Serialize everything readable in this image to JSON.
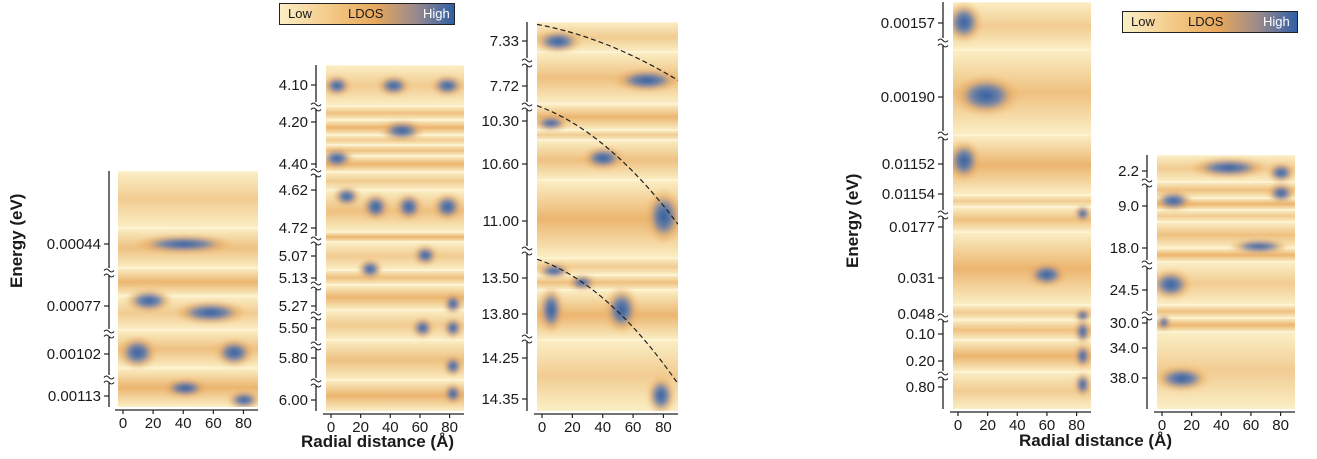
{
  "colors": {
    "low": "#fbefc6",
    "mid": "#e8a85c",
    "high": "#2b5aa3"
  },
  "legend": {
    "low": "Low",
    "mid": "LDOS",
    "high": "High"
  },
  "labels": {
    "energy": "Energy (eV)",
    "radial": "Radial distance (Å)"
  },
  "chart_data": [
    {
      "type": "heatmap",
      "name_hint": "panel-a",
      "ylabel": "Energy (eV)",
      "x_ticks": [
        "0",
        "20",
        "40",
        "60",
        "80"
      ],
      "xlim": [
        0,
        85
      ],
      "y_ticks": [
        "0.00044",
        "0.00077",
        "0.00102",
        "0.00113"
      ],
      "hotspots": [
        {
          "energy": "0.00044",
          "r": [
            15,
            55
          ]
        },
        {
          "energy": "0.00077",
          "r": [
            10,
            60
          ]
        },
        {
          "energy": "0.00102",
          "r": [
            5,
            70
          ]
        },
        {
          "energy": "0.00113",
          "r": [
            40,
            80
          ]
        }
      ]
    },
    {
      "type": "heatmap",
      "name_hint": "panel-b",
      "x_ticks": [
        "0",
        "20",
        "40",
        "60",
        "80"
      ],
      "xlim": [
        0,
        85
      ],
      "y_ticks": [
        "4.10",
        "4.20",
        "4.40",
        "4.62",
        "4.72",
        "5.07",
        "5.13",
        "5.27",
        "5.50",
        "5.80",
        "6.00"
      ],
      "xlabel": "Radial distance (Å)"
    },
    {
      "type": "heatmap",
      "name_hint": "panel-c",
      "x_ticks": [
        "0",
        "20",
        "40",
        "60",
        "80"
      ],
      "xlim": [
        0,
        85
      ],
      "y_ticks": [
        "7.33",
        "7.72",
        "10.30",
        "10.60",
        "11.00",
        "13.50",
        "13.80",
        "14.25",
        "14.35"
      ],
      "dashed_curves": 3
    },
    {
      "type": "heatmap",
      "name_hint": "panel-d",
      "ylabel": "Energy (eV)",
      "x_ticks": [
        "0",
        "20",
        "40",
        "60",
        "80"
      ],
      "xlim": [
        0,
        85
      ],
      "y_ticks": [
        "0.00157",
        "0.00190",
        "0.01152",
        "0.01154",
        "0.0177",
        "0.031",
        "0.048",
        "0.10",
        "0.20",
        "0.80"
      ],
      "xlabel": "Radial distance (Å)"
    },
    {
      "type": "heatmap",
      "name_hint": "panel-e",
      "x_ticks": [
        "0",
        "20",
        "40",
        "60",
        "80"
      ],
      "xlim": [
        0,
        85
      ],
      "y_ticks": [
        "2.2",
        "9.0",
        "18.0",
        "24.5",
        "30.0",
        "34.0",
        "38.0"
      ]
    }
  ]
}
